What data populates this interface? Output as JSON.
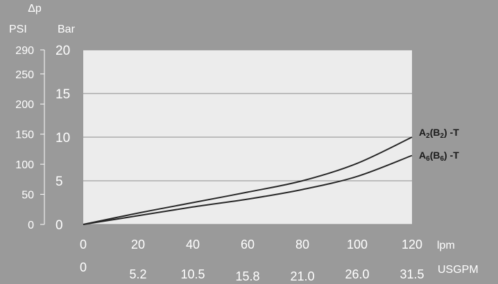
{
  "chart_data": {
    "type": "line",
    "title": "",
    "ylabel": "Δp",
    "y_left_unit": "PSI",
    "y_right_unit": "Bar",
    "x_unit": "lpm",
    "x2_unit": "USGPM",
    "xlim": [
      0,
      120
    ],
    "ylim": [
      0,
      20
    ],
    "grid": true,
    "psi_ticks": [
      "0",
      "50",
      "100",
      "150",
      "200",
      "250",
      "290"
    ],
    "psi_tick_values": [
      0,
      50,
      100,
      150,
      200,
      250,
      290
    ],
    "bar_ticks": [
      "0",
      "5",
      "10",
      "15",
      "20"
    ],
    "bar_tick_values": [
      0,
      5,
      10,
      15,
      20
    ],
    "x_ticks": [
      "0",
      "20",
      "40",
      "60",
      "80",
      "100",
      "120"
    ],
    "x_tick_values": [
      0,
      20,
      40,
      60,
      80,
      100,
      120
    ],
    "usgpm_ticks": [
      "0",
      "5.2",
      "10.5",
      "15.8",
      "21.0",
      "26.0",
      "31.5"
    ],
    "series": [
      {
        "name": "A2(B2) -T",
        "name_parts": [
          {
            "text": "A",
            "sub": false
          },
          {
            "text": "2",
            "sub": true
          },
          {
            "text": "(B",
            "sub": false
          },
          {
            "text": "2",
            "sub": true
          },
          {
            "text": ") -T",
            "sub": false
          }
        ],
        "color": "#262626",
        "x": [
          0,
          20,
          40,
          60,
          80,
          100,
          120
        ],
        "y": [
          0,
          1.3,
          2.5,
          3.7,
          5.0,
          7.0,
          10.0
        ]
      },
      {
        "name": "A6(B6) -T",
        "name_parts": [
          {
            "text": "A",
            "sub": false
          },
          {
            "text": "6",
            "sub": true
          },
          {
            "text": "(B",
            "sub": false
          },
          {
            "text": "6",
            "sub": true
          },
          {
            "text": ") -T",
            "sub": false
          }
        ],
        "color": "#262626",
        "x": [
          0,
          20,
          40,
          60,
          80,
          100,
          120
        ],
        "y": [
          0,
          1.0,
          2.0,
          2.9,
          4.0,
          5.5,
          7.9
        ]
      }
    ],
    "plot_background": "#ececec",
    "grid_color": "#8c8c8c"
  }
}
